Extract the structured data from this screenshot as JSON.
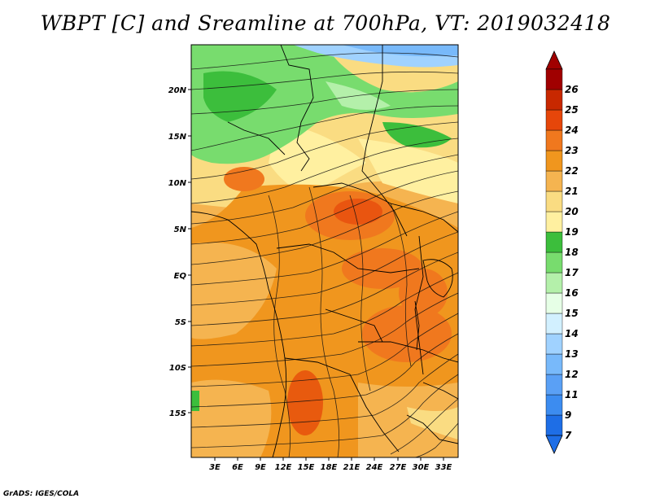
{
  "title": "WBPT [C] and Sreamline at 700hPa, VT: 2019032418",
  "footer": "GrADS: IGES/COLA",
  "map": {
    "lat_labels": [
      "20N",
      "15N",
      "10N",
      "5N",
      "EQ",
      "5S",
      "10S",
      "15S"
    ],
    "lon_labels": [
      "3E",
      "6E",
      "9E",
      "12E",
      "15E",
      "18E",
      "21E",
      "24E",
      "27E",
      "30E",
      "33E"
    ]
  },
  "colorbar": {
    "labels": [
      "7",
      "9",
      "11",
      "12",
      "13",
      "14",
      "15",
      "16",
      "17",
      "18",
      "19",
      "20",
      "21",
      "22",
      "23",
      "24",
      "25",
      "26"
    ],
    "colors": [
      "#1e6ee6",
      "#3c8cf0",
      "#5aa0f5",
      "#78b9fa",
      "#a0d2ff",
      "#d2f0ff",
      "#e6ffe6",
      "#b4f0aa",
      "#78dc6e",
      "#3cbe3c",
      "#fff0a0",
      "#fadc82",
      "#f5b450",
      "#f0961e",
      "#f0781e",
      "#e6460a",
      "#c82800",
      "#a00000"
    ]
  }
}
